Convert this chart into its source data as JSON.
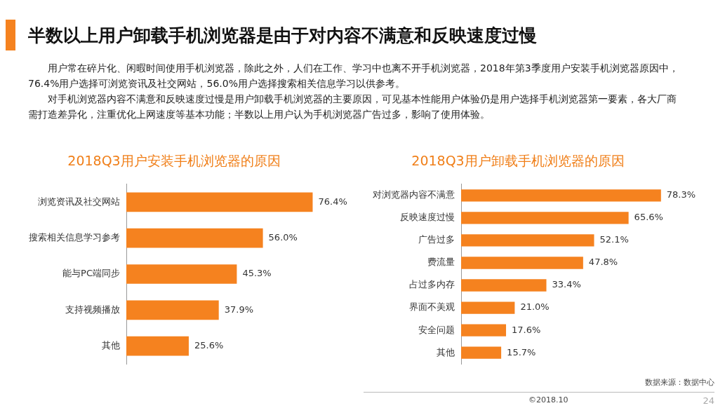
{
  "chart_data": [
    {
      "type": "other",
      "title": "半数以上用户卸载手机浏览器是由于对内容不满意和反映速度过慢",
      "annotations": [
        "用户常在碎片化、闲暇时间使用手机浏览器，除此之外，人们在工作、学习中也离不开手机浏览器，2018年第3季度用户安装手机浏览器原因中，76.4%用户选择可浏览资讯及社交网站，56.0%用户选择搜索相关信息学习以供参考。",
        "对手机浏览器内容不满意和反映速度过慢是用户卸载手机浏览器的主要原因，可见基本性能用户体验仍是用户选择手机浏览器第一要素，各大厂商需打造差异化，注重优化上网速度等基本功能；半数以上用户认为手机浏览器广告过多，影响了使用体验。"
      ]
    },
    {
      "type": "bar",
      "orientation": "horizontal",
      "title": "2018Q3用户安装手机浏览器的原因",
      "categories": [
        "浏览资讯及社交网站",
        "搜索相关信息学习参考",
        "能与PC端同步",
        "支持视频播放",
        "其他"
      ],
      "values": [
        76.4,
        56.0,
        45.3,
        37.9,
        25.6
      ],
      "value_labels": [
        "76.4%",
        "56.0%",
        "45.3%",
        "37.9%",
        "25.6%"
      ],
      "color": "#f5821f",
      "tick_labels": "y"
    },
    {
      "type": "bar",
      "orientation": "horizontal",
      "title": "2018Q3用户卸载手机浏览器的原因",
      "categories": [
        "对浏览器内容不满意",
        "反映速度过慢",
        "广告过多",
        "费流量",
        "占过多内存",
        "界面不美观",
        "安全问题",
        "其他"
      ],
      "values": [
        78.3,
        65.6,
        52.1,
        47.8,
        33.4,
        21.0,
        17.6,
        15.7
      ],
      "value_labels": [
        "78.3%",
        "65.6%",
        "52.1%",
        "47.8%",
        "33.4%",
        "21.0%",
        "17.6%",
        "15.7%"
      ],
      "color": "#f5821f",
      "tick_labels": "y",
      "annotations": [
        "数据来源：数据中心",
        "©2018.10",
        "24"
      ]
    }
  ]
}
